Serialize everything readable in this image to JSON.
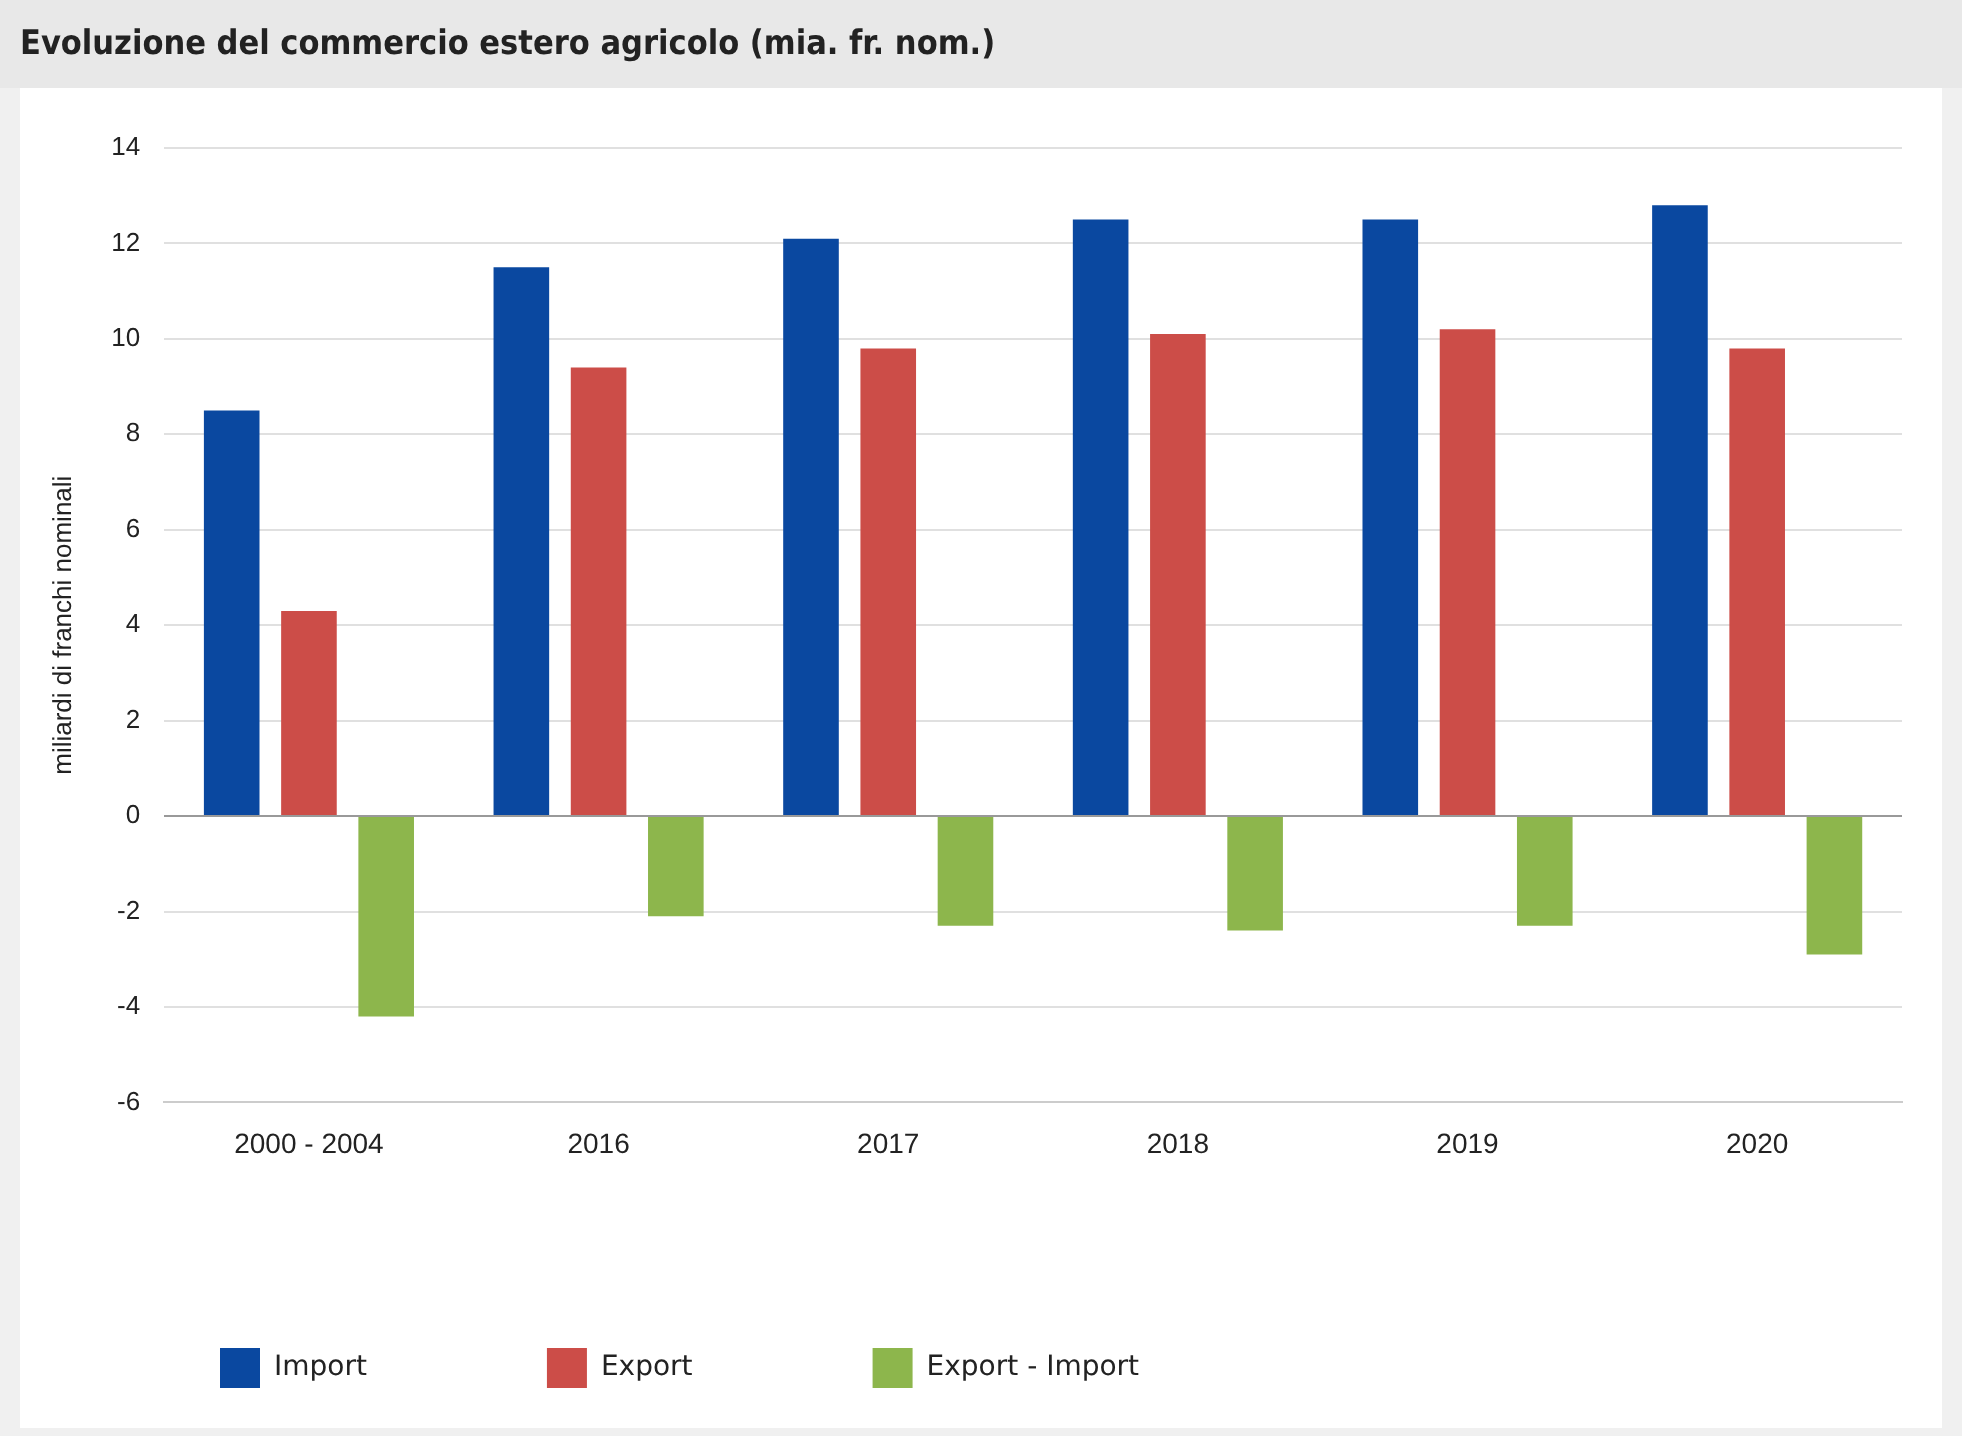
{
  "chart_data": {
    "type": "bar",
    "title": "Evoluzione del commercio estero agricolo (mia. fr. nom.)",
    "ylabel": "miliardi di franchi nominali",
    "categories": [
      "2000 - 2004",
      "2016",
      "2017",
      "2018",
      "2019",
      "2020"
    ],
    "series": [
      {
        "name": "Import",
        "color": "#0a48a0",
        "values": [
          8.5,
          11.5,
          12.1,
          12.5,
          12.5,
          12.8
        ]
      },
      {
        "name": "Export",
        "color": "#cc4d48",
        "values": [
          4.3,
          9.4,
          9.8,
          10.1,
          10.2,
          9.8
        ]
      },
      {
        "name": "Export - Import",
        "color": "#8db64c",
        "values": [
          -4.2,
          -2.1,
          -2.3,
          -2.4,
          -2.3,
          -2.9
        ]
      }
    ],
    "ylim": [
      -6,
      14
    ],
    "yticks": [
      -6,
      -4,
      -2,
      0,
      2,
      4,
      6,
      8,
      10,
      12,
      14
    ],
    "grid": "y",
    "legend": "bottom left"
  }
}
